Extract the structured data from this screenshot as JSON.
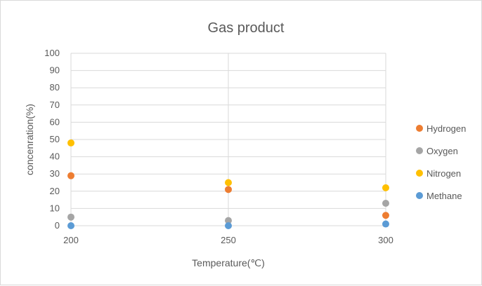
{
  "chart_data": {
    "type": "scatter",
    "title": "Gas product",
    "xlabel": "Temperature(℃)",
    "ylabel": "concenration(%)",
    "x": [
      200,
      250,
      300
    ],
    "xlim": [
      200,
      300
    ],
    "xticks": [
      "200",
      "250",
      "300"
    ],
    "ylim": [
      0,
      100
    ],
    "yticks": [
      "0",
      "10",
      "20",
      "30",
      "40",
      "50",
      "60",
      "70",
      "80",
      "90",
      "100"
    ],
    "grid": true,
    "legend_position": "right",
    "series": [
      {
        "name": "Hydrogen",
        "color": "#ED7D31",
        "values": [
          29,
          21,
          6
        ]
      },
      {
        "name": "Oxygen",
        "color": "#A5A5A5",
        "values": [
          5,
          3,
          13
        ]
      },
      {
        "name": "Nitrogen",
        "color": "#FFC000",
        "values": [
          48,
          25,
          22
        ]
      },
      {
        "name": "Methane",
        "color": "#5B9BD5",
        "values": [
          0,
          0,
          1
        ]
      }
    ]
  }
}
